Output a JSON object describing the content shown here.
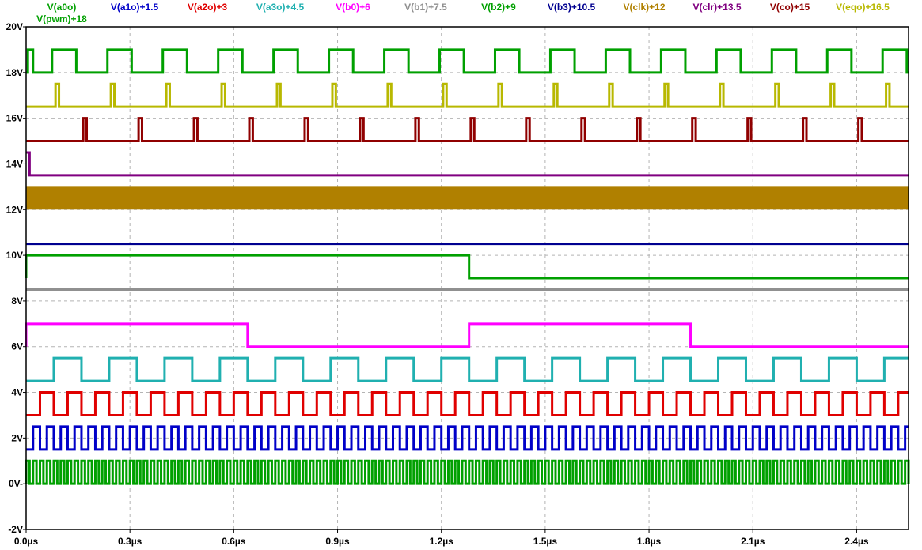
{
  "chart_data": {
    "type": "line",
    "title": "",
    "xlabel": "",
    "ylabel": "",
    "xlim": [
      0,
      2.55
    ],
    "ylim": [
      -2,
      20
    ],
    "x_unit": "µs",
    "grid": true,
    "x_ticks": [
      {
        "value": 0,
        "label": "0.0µs"
      },
      {
        "value": 0.3,
        "label": "0.3µs"
      },
      {
        "value": 0.6,
        "label": "0.6µs"
      },
      {
        "value": 0.9,
        "label": "0.9µs"
      },
      {
        "value": 1.2,
        "label": "1.2µs"
      },
      {
        "value": 1.5,
        "label": "1.5µs"
      },
      {
        "value": 1.8,
        "label": "1.8µs"
      },
      {
        "value": 2.1,
        "label": "2.1µs"
      },
      {
        "value": 2.4,
        "label": "2.4µs"
      }
    ],
    "y_ticks": [
      {
        "value": -2,
        "label": "-2V"
      },
      {
        "value": 0,
        "label": "0V-"
      },
      {
        "value": 2,
        "label": "2V"
      },
      {
        "value": 4,
        "label": "4V"
      },
      {
        "value": 6,
        "label": "6V"
      },
      {
        "value": 8,
        "label": "8V"
      },
      {
        "value": 10,
        "label": "10V"
      },
      {
        "value": 12,
        "label": "12V"
      },
      {
        "value": 14,
        "label": "14V"
      },
      {
        "value": 16,
        "label": "16V"
      },
      {
        "value": 18,
        "label": "18V"
      },
      {
        "value": 20,
        "label": "20V"
      }
    ],
    "series": [
      {
        "name": "V(a0o)",
        "color": "#00a000",
        "kind": "square",
        "base": 0,
        "amp": 1,
        "period": 0.02,
        "duty": 0.5,
        "t0": 0
      },
      {
        "name": "V(a1o)+1.5",
        "color": "#0000c8",
        "kind": "square",
        "base": 1.5,
        "amp": 1,
        "period": 0.04,
        "duty": 0.5,
        "t0": 0.02
      },
      {
        "name": "V(a2o)+3",
        "color": "#e00000",
        "kind": "square",
        "base": 3,
        "amp": 1,
        "period": 0.08,
        "duty": 0.5,
        "t0": 0.04
      },
      {
        "name": "V(a3o)+4.5",
        "color": "#20b0b0",
        "kind": "square",
        "base": 4.5,
        "amp": 1,
        "period": 0.16,
        "duty": 0.5,
        "t0": 0.08
      },
      {
        "name": "V(b0)+6",
        "color": "#ff00ff",
        "kind": "steps",
        "points": [
          [
            0,
            6
          ],
          [
            0,
            7
          ],
          [
            0.64,
            7
          ],
          [
            0.64,
            6
          ],
          [
            1.28,
            6
          ],
          [
            1.28,
            7
          ],
          [
            1.92,
            7
          ],
          [
            1.92,
            6
          ],
          [
            2.55,
            6
          ]
        ]
      },
      {
        "name": "V(b1)+7.5",
        "color": "#909090",
        "kind": "steps",
        "points": [
          [
            0,
            8.5
          ],
          [
            2.55,
            8.5
          ]
        ]
      },
      {
        "name": "V(b2)+9",
        "color": "#00a000",
        "kind": "steps",
        "points": [
          [
            0,
            9
          ],
          [
            0,
            10
          ],
          [
            1.28,
            10
          ],
          [
            1.28,
            9
          ],
          [
            2.55,
            9
          ]
        ]
      },
      {
        "name": "V(b3)+10.5",
        "color": "#000090",
        "kind": "steps",
        "points": [
          [
            0,
            10.5
          ],
          [
            2.55,
            10.5
          ]
        ]
      },
      {
        "name": "V(clk)+12",
        "color": "#b08000",
        "kind": "band",
        "low": 12,
        "high": 13
      },
      {
        "name": "V(clr)+13.5",
        "color": "#800080",
        "kind": "steps",
        "points": [
          [
            0,
            14.5
          ],
          [
            0.01,
            14.5
          ],
          [
            0.01,
            13.5
          ],
          [
            2.55,
            13.5
          ]
        ]
      },
      {
        "name": "V(co)+15",
        "color": "#900000",
        "kind": "pulse",
        "base": 15,
        "amp": 1,
        "first": 0.165,
        "period": 0.16,
        "width": 0.01
      },
      {
        "name": "V(eqo)+16.5",
        "color": "#b8b800",
        "kind": "pulse",
        "base": 16.5,
        "amp": 1,
        "first": 0.085,
        "period": 0.16,
        "width": 0.01
      },
      {
        "name": "V(pwm)+18",
        "color": "#00a000",
        "kind": "pwm",
        "base": 18,
        "amp": 1,
        "period": 0.16,
        "first_edges": [
          [
            0,
            18
          ],
          [
            0.005,
            18
          ],
          [
            0.005,
            19
          ],
          [
            0.02,
            19
          ],
          [
            0.02,
            18
          ]
        ],
        "start": 0.015,
        "width": 0.07
      }
    ]
  }
}
